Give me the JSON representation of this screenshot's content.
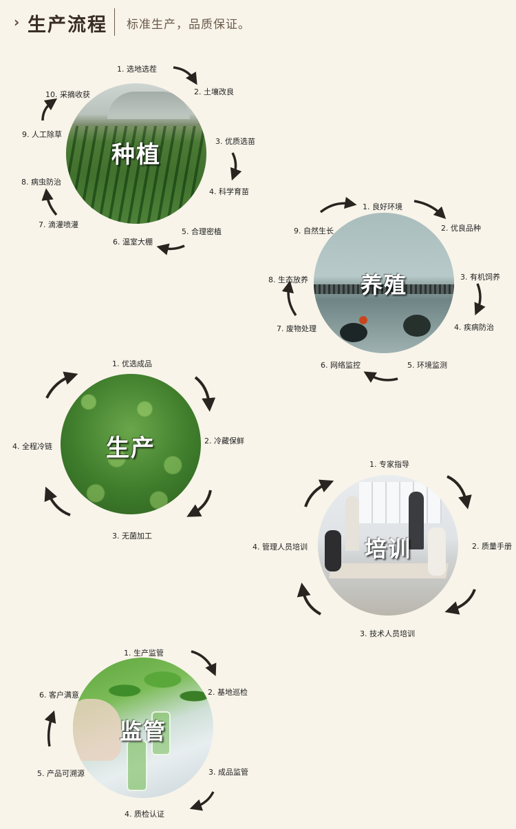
{
  "header": {
    "title": "生产流程",
    "subtitle": "标准生产，品质保证。",
    "chevron_icon": "chevron-right-icon"
  },
  "sections": {
    "planting": {
      "title": "种植",
      "steps": [
        "1. 选地选茬",
        "2. 土壤改良",
        "3. 优质选苗",
        "4. 科学育苗",
        "5. 合理密植",
        "6. 温室大棚",
        "7. 滴灌喷灌",
        "8. 病虫防治",
        "9. 人工除草",
        "10. 采摘收获"
      ]
    },
    "breeding": {
      "title": "养殖",
      "steps": [
        "1. 良好环境",
        "2. 优良品种",
        "3. 有机饲养",
        "4. 疾病防治",
        "5. 环境监测",
        "6. 网络监控",
        "7. 废物处理",
        "8. 生态放养",
        "9. 自然生长"
      ]
    },
    "production": {
      "title": "生产",
      "steps": [
        "1. 优选成品",
        "2. 冷藏保鲜",
        "3. 无菌加工",
        "4. 全程冷链"
      ]
    },
    "training": {
      "title": "培训",
      "steps": [
        "1. 专家指导",
        "2. 质量手册",
        "3. 技术人员培训",
        "4. 管理人员培训"
      ]
    },
    "supervision": {
      "title": "监管",
      "steps": [
        "1. 生产监管",
        "2. 基地巡检",
        "3. 成品监管",
        "4. 质检认证",
        "5. 产品可溯源",
        "6. 客户满意"
      ]
    }
  },
  "colors": {
    "background": "#f8f4ea",
    "heading": "#3a2e24",
    "arrow": "#2a2420"
  }
}
